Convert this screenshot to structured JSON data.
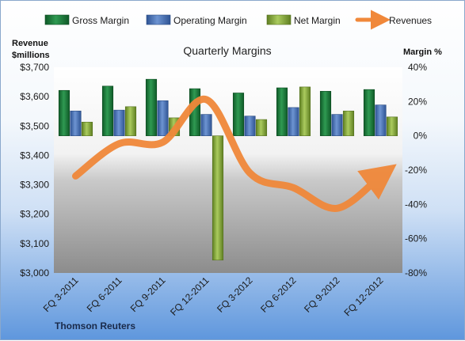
{
  "chart_data": {
    "type": "bar",
    "title": "Quarterly Margins",
    "source": "Thomson Reuters",
    "categories": [
      "FQ 3-2011",
      "FQ 6-2011",
      "FQ 9-2011",
      "FQ 12-2011",
      "FQ 3-2012",
      "FQ 6-2012",
      "FQ 9-2012",
      "FQ 12-2012"
    ],
    "y_left": {
      "label_line1": "Revenue",
      "label_line2": "$millions",
      "range": [
        3000,
        3700
      ],
      "ticks": [
        3000,
        3100,
        3200,
        3300,
        3400,
        3500,
        3600,
        3700
      ],
      "tick_labels": [
        "$3,000",
        "$3,100",
        "$3,200",
        "$3,300",
        "$3,400",
        "$3,500",
        "$3,600",
        "$3,700"
      ]
    },
    "y_right": {
      "label": "Margin %",
      "range": [
        -80,
        40
      ],
      "ticks": [
        -80,
        -60,
        -40,
        -20,
        0,
        20,
        40
      ],
      "tick_labels": [
        "-80%",
        "-60%",
        "-40%",
        "-20%",
        "0%",
        "20%",
        "40%"
      ]
    },
    "series": [
      {
        "name": "Gross Margin",
        "kind": "bar",
        "axis": "right",
        "color": "#1e7a3c",
        "values": [
          26.5,
          29,
          33,
          27.5,
          25,
          28,
          26,
          27
        ]
      },
      {
        "name": "Operating Margin",
        "kind": "bar",
        "axis": "right",
        "color": "#4a72b8",
        "values": [
          14.5,
          15,
          20.5,
          12.5,
          11.5,
          16.5,
          12.5,
          18
        ]
      },
      {
        "name": "Net Margin",
        "kind": "bar",
        "axis": "right",
        "color": "#8caf3c",
        "values": [
          8,
          17,
          10.5,
          -72.5,
          9.5,
          28.5,
          14.5,
          11
        ]
      },
      {
        "name": "Revenues",
        "kind": "line",
        "axis": "left",
        "color": "#f0883a",
        "values": [
          3330,
          3440,
          3445,
          3590,
          3340,
          3290,
          3220,
          3330
        ]
      }
    ],
    "legend_position": "top",
    "grid": false
  }
}
